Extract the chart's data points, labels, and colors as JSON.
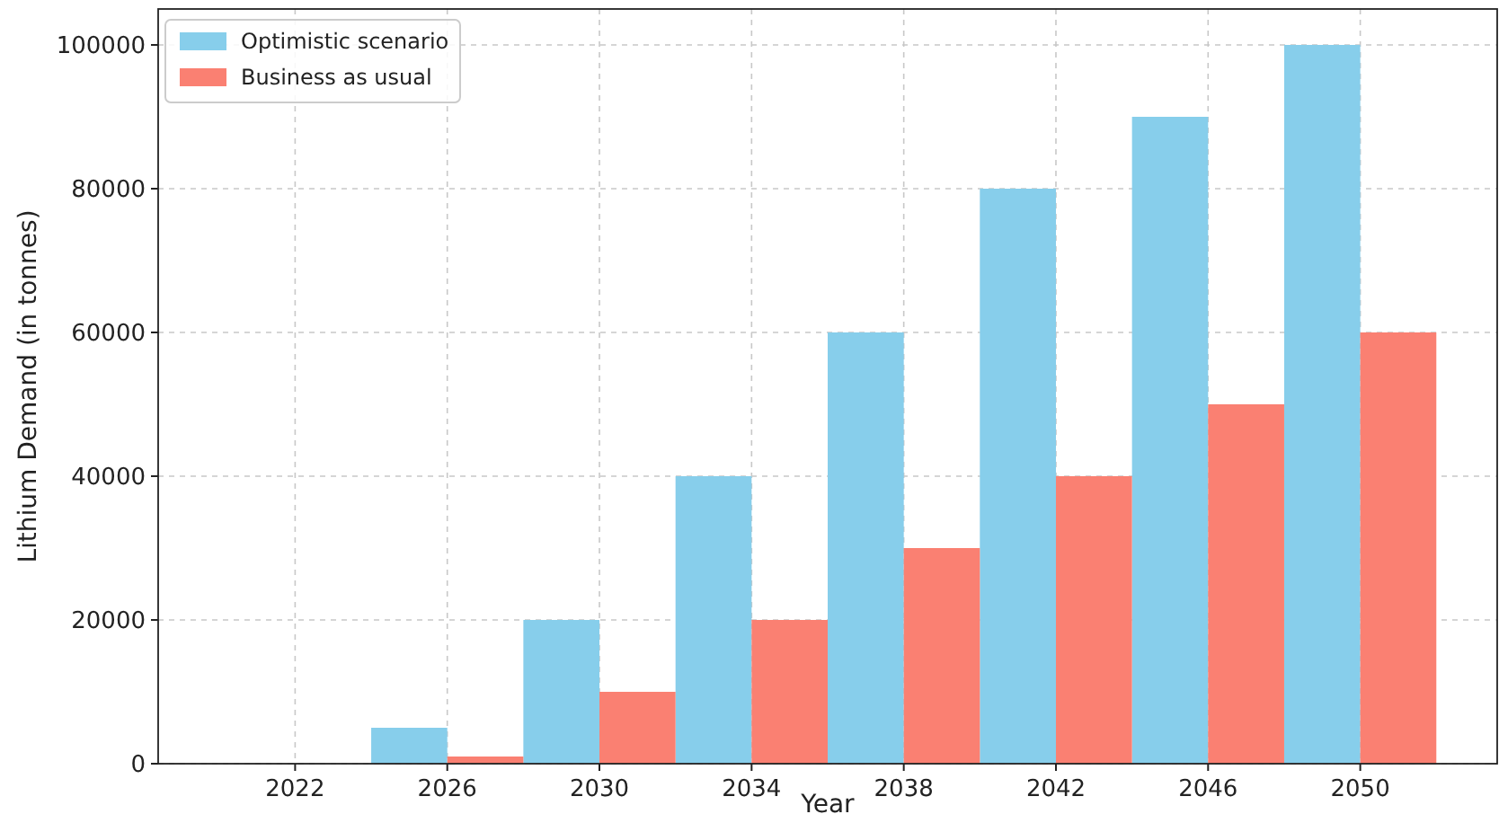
{
  "chart_data": {
    "type": "bar",
    "xlabel": "Year",
    "ylabel": "Lithium Demand (in tonnes)",
    "categories": [
      "2022",
      "2026",
      "2030",
      "2034",
      "2038",
      "2042",
      "2046",
      "2050"
    ],
    "series": [
      {
        "name": "Optimistic scenario",
        "color": "#87ceeb",
        "values": [
          0,
          5000,
          20000,
          40000,
          60000,
          80000,
          90000,
          100000
        ]
      },
      {
        "name": "Business as usual",
        "color": "#fa8072",
        "values": [
          0,
          1000,
          10000,
          20000,
          30000,
          40000,
          50000,
          60000
        ]
      }
    ],
    "ylim": [
      0,
      105000
    ],
    "yticks": [
      0,
      20000,
      40000,
      60000,
      80000,
      100000
    ],
    "grid": true,
    "legend": "top left"
  }
}
